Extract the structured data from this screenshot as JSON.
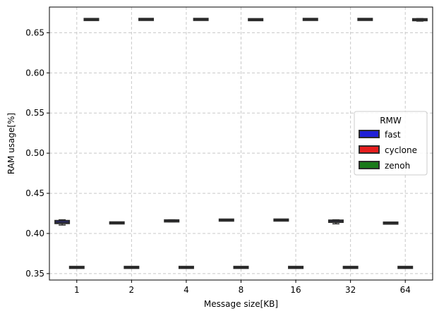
{
  "chart_data": {
    "type": "box",
    "xlabel": "Message size[KB]",
    "ylabel": "RAM usage[%]",
    "categories": [
      "1",
      "2",
      "4",
      "8",
      "16",
      "32",
      "64"
    ],
    "ylim": [
      0.342,
      0.682
    ],
    "yticks": [
      "0.35",
      "0.40",
      "0.45",
      "0.50",
      "0.55",
      "0.60",
      "0.65"
    ],
    "grid": true,
    "grid_style": "dashed",
    "legend_title": "RMW",
    "legend_position": "center-right",
    "series": [
      {
        "name": "fast",
        "color": "#1f1fd6",
        "boxes": [
          {
            "min": 0.4105,
            "q1": 0.4125,
            "median": 0.414,
            "q3": 0.416,
            "max": 0.417
          },
          {
            "min": 0.4125,
            "q1": 0.4128,
            "median": 0.413,
            "q3": 0.4135,
            "max": 0.414
          },
          {
            "min": 0.4145,
            "q1": 0.4148,
            "median": 0.4155,
            "q3": 0.4165,
            "max": 0.417
          },
          {
            "min": 0.416,
            "q1": 0.4163,
            "median": 0.4165,
            "q3": 0.417,
            "max": 0.4173
          },
          {
            "min": 0.4162,
            "q1": 0.4164,
            "median": 0.4166,
            "q3": 0.417,
            "max": 0.4172
          },
          {
            "min": 0.412,
            "q1": 0.414,
            "median": 0.415,
            "q3": 0.4165,
            "max": 0.417
          },
          {
            "min": 0.4122,
            "q1": 0.4125,
            "median": 0.4128,
            "q3": 0.4133,
            "max": 0.4135
          }
        ]
      },
      {
        "name": "cyclone",
        "color": "#e61e1e",
        "boxes": [
          {
            "min": 0.3572,
            "q1": 0.3575,
            "median": 0.3577,
            "q3": 0.358,
            "max": 0.3583
          },
          {
            "min": 0.3572,
            "q1": 0.3575,
            "median": 0.3577,
            "q3": 0.358,
            "max": 0.3583
          },
          {
            "min": 0.3572,
            "q1": 0.3575,
            "median": 0.3577,
            "q3": 0.358,
            "max": 0.3583
          },
          {
            "min": 0.3572,
            "q1": 0.3575,
            "median": 0.3577,
            "q3": 0.358,
            "max": 0.3583
          },
          {
            "min": 0.3572,
            "q1": 0.3575,
            "median": 0.3577,
            "q3": 0.358,
            "max": 0.3583
          },
          {
            "min": 0.3572,
            "q1": 0.3575,
            "median": 0.3577,
            "q3": 0.358,
            "max": 0.3583
          },
          {
            "min": 0.3572,
            "q1": 0.3575,
            "median": 0.3577,
            "q3": 0.358,
            "max": 0.3583
          }
        ]
      },
      {
        "name": "zenoh",
        "color": "#1a7a1a",
        "boxes": [
          {
            "min": 0.6655,
            "q1": 0.666,
            "median": 0.6663,
            "q3": 0.667,
            "max": 0.6673
          },
          {
            "min": 0.6657,
            "q1": 0.666,
            "median": 0.6665,
            "q3": 0.6672,
            "max": 0.6676
          },
          {
            "min": 0.6657,
            "q1": 0.666,
            "median": 0.6665,
            "q3": 0.6672,
            "max": 0.6676
          },
          {
            "min": 0.6655,
            "q1": 0.6658,
            "median": 0.6662,
            "q3": 0.6668,
            "max": 0.667
          },
          {
            "min": 0.6657,
            "q1": 0.666,
            "median": 0.6665,
            "q3": 0.6672,
            "max": 0.6676
          },
          {
            "min": 0.6657,
            "q1": 0.666,
            "median": 0.6665,
            "q3": 0.6672,
            "max": 0.6676
          },
          {
            "min": 0.6645,
            "q1": 0.6655,
            "median": 0.666,
            "q3": 0.667,
            "max": 0.6676
          }
        ]
      }
    ]
  }
}
